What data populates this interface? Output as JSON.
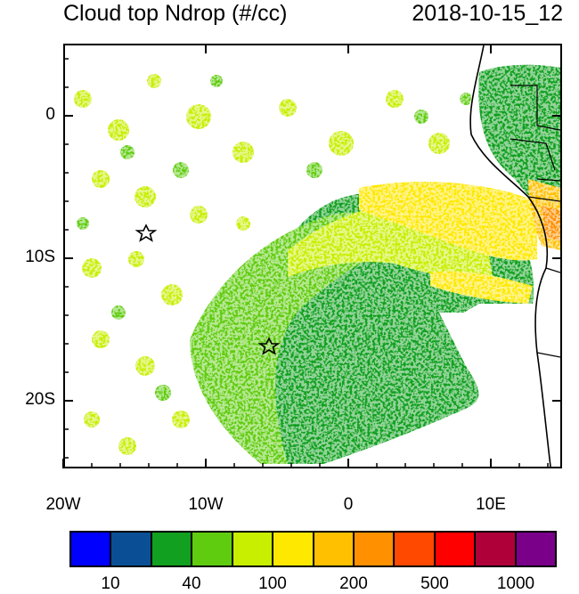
{
  "header": {
    "title": "Cloud top Ndrop (#/cc)",
    "timestamp": "2018-10-15_12"
  },
  "axes": {
    "lat_labels": [
      "0",
      "10S",
      "20S"
    ],
    "lon_labels": [
      "20W",
      "10W",
      "0",
      "10E"
    ]
  },
  "colorbar": {
    "colors": [
      "#0000ff",
      "#0a4f96",
      "#12a020",
      "#60cc10",
      "#c8ee00",
      "#ffe800",
      "#ffc000",
      "#ff9000",
      "#ff4800",
      "#ff0000",
      "#b0003a",
      "#7a008a"
    ],
    "labels": [
      "10",
      "40",
      "100",
      "200",
      "500",
      "1000"
    ]
  },
  "markers": [
    "star-marker-1",
    "star-marker-2"
  ]
}
